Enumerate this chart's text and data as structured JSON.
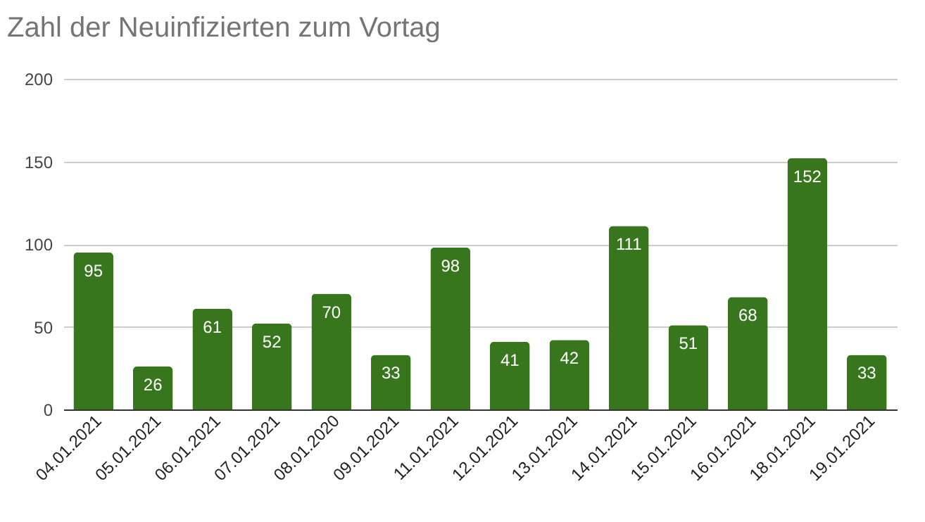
{
  "chart_data": {
    "type": "bar",
    "title": "Zahl der Neuinfizierten zum Vortag",
    "categories": [
      "04.01.2021",
      "05.01.2021",
      "06.01.2021",
      "07.01.2021",
      "08.01.2020",
      "09.01.2021",
      "11.01.2021",
      "12.01.2021",
      "13.01.2021",
      "14.01.2021",
      "15.01.2021",
      "16.01.2021",
      "18.01.2021",
      "19.01.2021"
    ],
    "values": [
      95,
      26,
      61,
      52,
      70,
      33,
      98,
      41,
      42,
      111,
      51,
      68,
      152,
      33
    ],
    "color": "#38761d",
    "ylim": [
      0,
      200
    ],
    "yticks": [
      0,
      50,
      100,
      150,
      200
    ],
    "grid": "y",
    "data_labels": true
  }
}
